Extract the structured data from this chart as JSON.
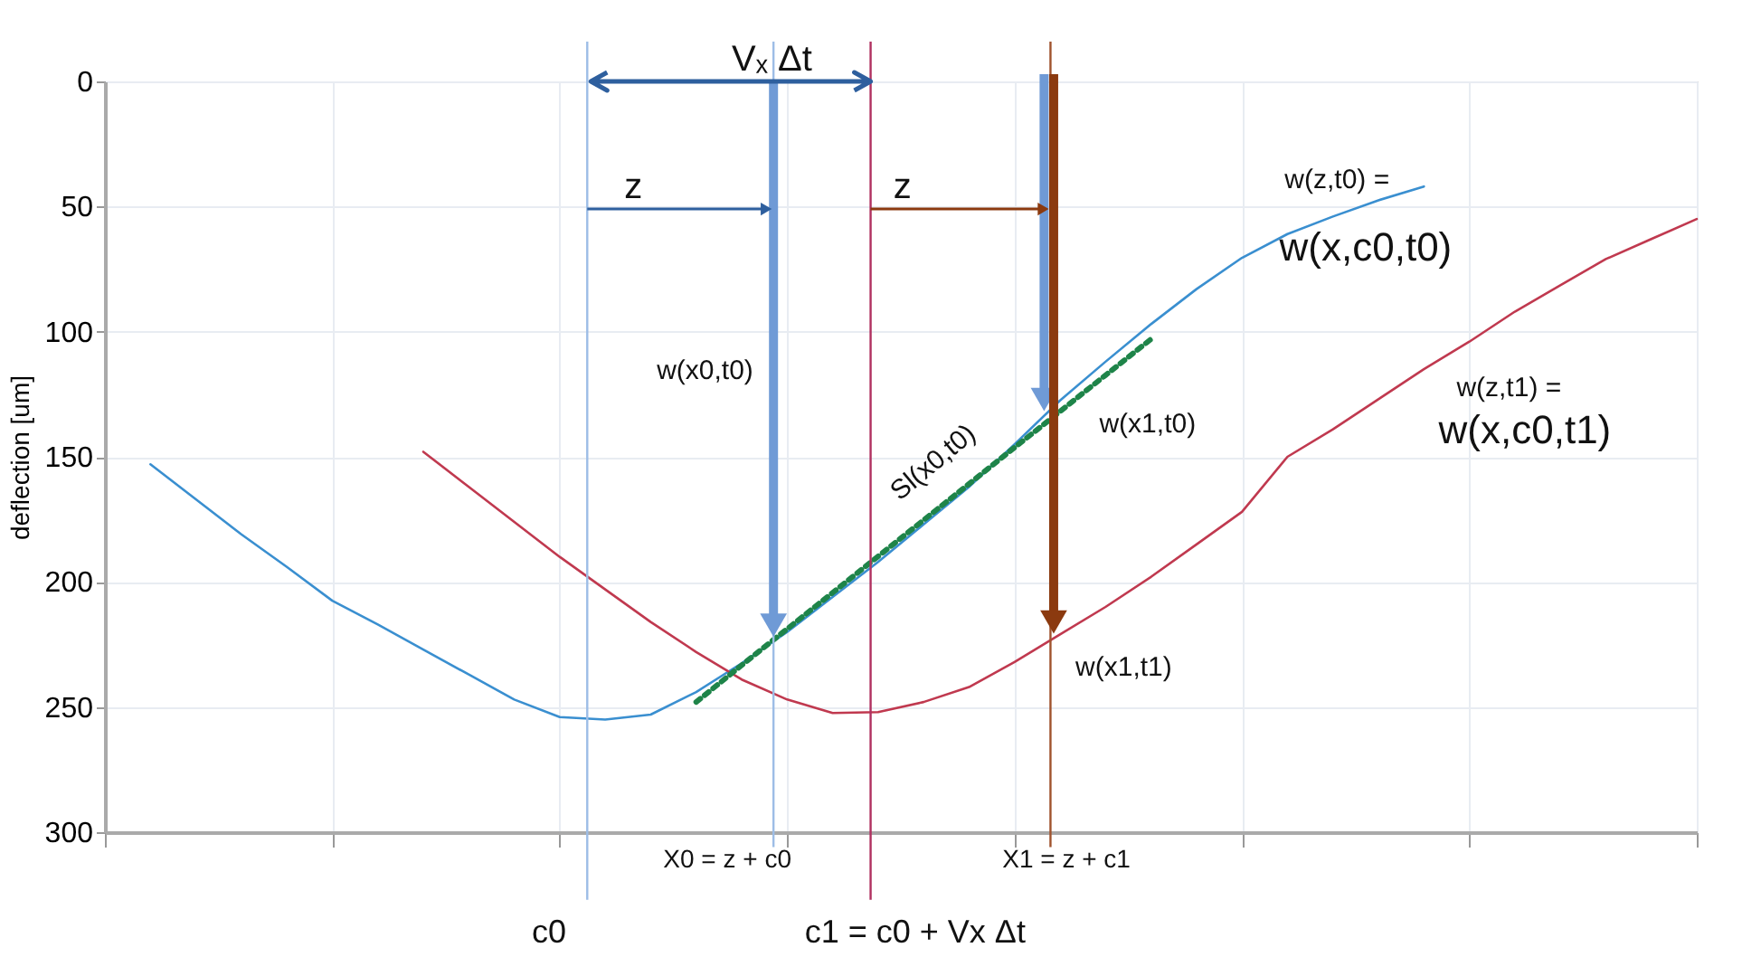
{
  "chart_data": {
    "type": "line",
    "ylabel": "deflection [um]",
    "categories": [
      null,
      null,
      null,
      null,
      null,
      null,
      null,
      null,
      null,
      null,
      null,
      null,
      null,
      null,
      null,
      null,
      null,
      null,
      null,
      null,
      null,
      null,
      null,
      null,
      null,
      null,
      null,
      null,
      null,
      null,
      null,
      null,
      null,
      null,
      null,
      null
    ],
    "ylim": [
      300,
      0
    ],
    "yticks": [
      0,
      50,
      100,
      150,
      200,
      250,
      300
    ],
    "tick_labels": "y",
    "grid": true,
    "marker": "none",
    "series": [
      {
        "color": "#3a8fd0",
        "values": [
          null,
          153,
          167,
          181,
          194,
          207.5,
          217,
          227,
          237,
          247,
          254,
          255,
          253,
          244,
          232.5,
          220,
          206,
          192,
          177,
          162,
          145,
          127.5,
          112,
          97,
          83,
          70.5,
          61,
          54,
          47.5,
          42,
          null,
          null,
          null,
          null,
          null,
          null
        ]
      },
      {
        "color": "#c0394f",
        "values": [
          null,
          null,
          null,
          null,
          null,
          null,
          null,
          148,
          162,
          176,
          190,
          203,
          216,
          228,
          239,
          247,
          252.4,
          252,
          248,
          242,
          232,
          221,
          210,
          198,
          185,
          172,
          150,
          139,
          127,
          115,
          104,
          92,
          81.5,
          71,
          63,
          55
        ]
      },
      {
        "color": "#1e8449",
        "line_style": "dotted",
        "values": [
          null,
          null,
          null,
          null,
          null,
          null,
          null,
          null,
          null,
          null,
          null,
          null,
          null,
          248,
          233.3,
          218.8,
          204.3,
          189.8,
          175.3,
          160.8,
          146.3,
          131.9,
          117.4,
          103,
          null,
          null,
          null,
          null,
          null,
          null,
          null,
          null,
          null,
          null,
          null,
          null
        ]
      }
    ],
    "annotations": [
      "z",
      "z",
      "w(x0,t0)",
      "Sl(x0,t0)",
      "w(x1,t0)",
      "w(x1,t1)",
      "w(z,t0) =",
      "w(x,c0,t0)",
      "w(z,t1) =",
      "w(x,c0,t1)",
      "Vₓ Δt",
      "X0 = z + c0",
      "X1 = z + c1",
      "c0",
      "c1 = c0 + Vx Δt"
    ]
  }
}
